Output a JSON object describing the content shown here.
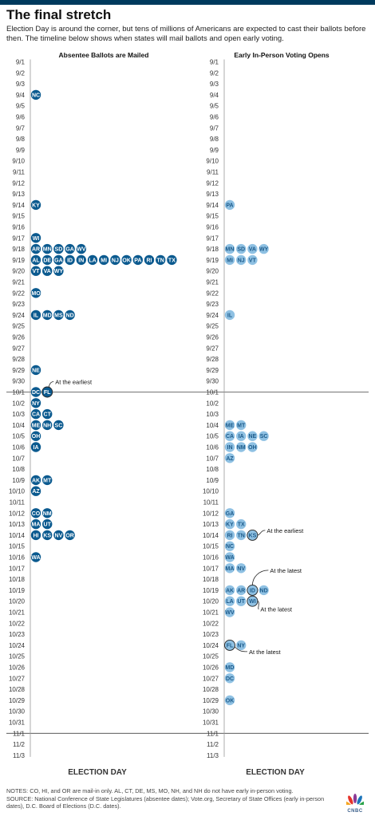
{
  "title": "The final stretch",
  "subtitle": "Election Day is around the corner, but tens of millions of Americans are expected to cast their ballots before then. The timeline below shows when states will mail ballots and open early voting.",
  "notes": "NOTES: CO, HI, and OR are mail-in only. AL, CT, DE, MS, MO, NH, and NH do not have early in-person voting.",
  "source": "SOURCE: National Conference of State Legislatures (absentee dates); Vote.org, Secretary of State Offices (early in-person dates), D.C. Board of Elections (D.C. dates).",
  "logo": {
    "icon": "peacock-icon",
    "text": "CNBC"
  },
  "colors": {
    "mail": "#0b5a8f",
    "early": "#8fc1e3",
    "early_text": "#1c5a8a",
    "dark": "#003a5d"
  },
  "chart_data": {
    "type": "scatter",
    "dates": [
      "9/1",
      "9/2",
      "9/3",
      "9/4",
      "9/5",
      "9/6",
      "9/7",
      "9/8",
      "9/9",
      "9/10",
      "9/11",
      "9/12",
      "9/13",
      "9/14",
      "9/15",
      "9/16",
      "9/17",
      "9/18",
      "9/19",
      "9/20",
      "9/21",
      "9/22",
      "9/23",
      "9/24",
      "9/25",
      "9/26",
      "9/27",
      "9/28",
      "9/29",
      "9/30",
      "10/1",
      "10/2",
      "10/3",
      "10/4",
      "10/5",
      "10/6",
      "10/7",
      "10/8",
      "10/9",
      "10/10",
      "10/11",
      "10/12",
      "10/13",
      "10/14",
      "10/15",
      "10/16",
      "10/17",
      "10/18",
      "10/19",
      "10/20",
      "10/21",
      "10/22",
      "10/23",
      "10/24",
      "10/25",
      "10/26",
      "10/27",
      "10/28",
      "10/29",
      "10/30",
      "10/31",
      "11/1",
      "11/2",
      "11/3"
    ],
    "axis_end_label": "ELECTION DAY",
    "reference_dates": [
      "10/1",
      "11/1"
    ],
    "panels": [
      {
        "title": "Absentee Ballots are Mailed",
        "series": [
          {
            "date": "9/4",
            "states": [
              "NC"
            ]
          },
          {
            "date": "9/14",
            "states": [
              "KY"
            ]
          },
          {
            "date": "9/17",
            "states": [
              "WI"
            ]
          },
          {
            "date": "9/18",
            "states": [
              "AR",
              "MN",
              "SD",
              "GA",
              "WV"
            ]
          },
          {
            "date": "9/19",
            "states": [
              "AL",
              "DE",
              "GA",
              "ID",
              "IN",
              "LA",
              "MI",
              "NJ",
              "OK",
              "PA",
              "RI",
              "TN",
              "TX"
            ]
          },
          {
            "date": "9/20",
            "states": [
              "VT",
              "VA",
              "WY"
            ]
          },
          {
            "date": "9/22",
            "states": [
              "MO"
            ]
          },
          {
            "date": "9/24",
            "states": [
              "IL",
              "MD",
              "MS",
              "ND"
            ]
          },
          {
            "date": "9/29",
            "states": [
              "NE"
            ]
          },
          {
            "date": "10/1",
            "states": [
              "DC",
              "FL"
            ]
          },
          {
            "date": "10/2",
            "states": [
              "NY"
            ]
          },
          {
            "date": "10/3",
            "states": [
              "CA",
              "CT"
            ]
          },
          {
            "date": "10/4",
            "states": [
              "ME",
              "NH",
              "SC"
            ]
          },
          {
            "date": "10/5",
            "states": [
              "OH"
            ]
          },
          {
            "date": "10/6",
            "states": [
              "IA"
            ]
          },
          {
            "date": "10/9",
            "states": [
              "AK",
              "MT"
            ]
          },
          {
            "date": "10/10",
            "states": [
              "AZ"
            ]
          },
          {
            "date": "10/12",
            "states": [
              "CO",
              "NM"
            ]
          },
          {
            "date": "10/13",
            "states": [
              "MA",
              "UT"
            ]
          },
          {
            "date": "10/14",
            "states": [
              "HI",
              "KS",
              "NV",
              "OR"
            ]
          },
          {
            "date": "10/16",
            "states": [
              "WA"
            ]
          }
        ],
        "annotations": [
          {
            "date": "10/1",
            "state": "FL",
            "text": "At the earliest"
          }
        ]
      },
      {
        "title": "Early In-Person Voting Opens",
        "series": [
          {
            "date": "9/14",
            "states": [
              "PA"
            ]
          },
          {
            "date": "9/18",
            "states": [
              "MN",
              "SD",
              "VA",
              "WY"
            ]
          },
          {
            "date": "9/19",
            "states": [
              "MI",
              "NJ",
              "VT"
            ]
          },
          {
            "date": "9/24",
            "states": [
              "IL"
            ]
          },
          {
            "date": "10/4",
            "states": [
              "ME",
              "MT"
            ]
          },
          {
            "date": "10/5",
            "states": [
              "CA",
              "IA",
              "NE",
              "SC"
            ]
          },
          {
            "date": "10/6",
            "states": [
              "IN",
              "NM",
              "OH"
            ]
          },
          {
            "date": "10/7",
            "states": [
              "AZ"
            ]
          },
          {
            "date": "10/12",
            "states": [
              "GA"
            ]
          },
          {
            "date": "10/13",
            "states": [
              "KY",
              "TX"
            ]
          },
          {
            "date": "10/14",
            "states": [
              "RI",
              "TN",
              "KS"
            ]
          },
          {
            "date": "10/15",
            "states": [
              "NC"
            ]
          },
          {
            "date": "10/16",
            "states": [
              "WA"
            ]
          },
          {
            "date": "10/17",
            "states": [
              "MA",
              "NV"
            ]
          },
          {
            "date": "10/19",
            "states": [
              "AK",
              "AR",
              "ID",
              "ND"
            ]
          },
          {
            "date": "10/20",
            "states": [
              "LA",
              "UT",
              "WI"
            ]
          },
          {
            "date": "10/21",
            "states": [
              "WV"
            ]
          },
          {
            "date": "10/24",
            "states": [
              "FL",
              "NY"
            ]
          },
          {
            "date": "10/26",
            "states": [
              "MD"
            ]
          },
          {
            "date": "10/27",
            "states": [
              "DC"
            ]
          },
          {
            "date": "10/29",
            "states": [
              "OK"
            ]
          }
        ],
        "annotations": [
          {
            "date": "10/14",
            "state": "KS",
            "text": "At the earliest"
          },
          {
            "date": "10/19",
            "state": "ID",
            "text": "At the latest"
          },
          {
            "date": "10/20",
            "state": "WI",
            "text": "At the latest"
          },
          {
            "date": "10/24",
            "state": "FL",
            "text": "At the latest"
          }
        ]
      }
    ]
  }
}
